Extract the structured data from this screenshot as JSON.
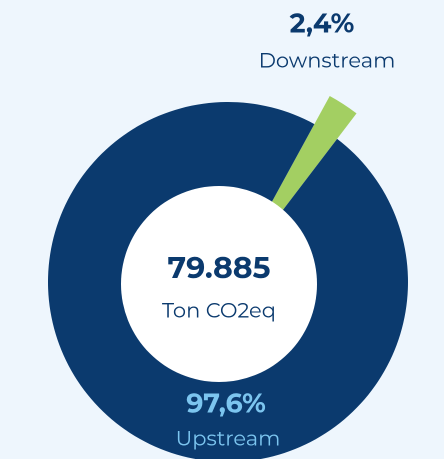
{
  "chart_data": {
    "type": "pie",
    "donut": true,
    "categories": [
      "Downstream",
      "Upstream"
    ],
    "values": [
      2.4,
      97.6
    ],
    "value_labels": [
      "2,4%",
      "97,6%"
    ],
    "colors": [
      "#a3cf62",
      "#0b3a6e"
    ],
    "label_colors": [
      "#0b3a6e",
      "#7cc5ef"
    ],
    "center_value": "79.885",
    "center_label": "Ton CO2eq"
  }
}
